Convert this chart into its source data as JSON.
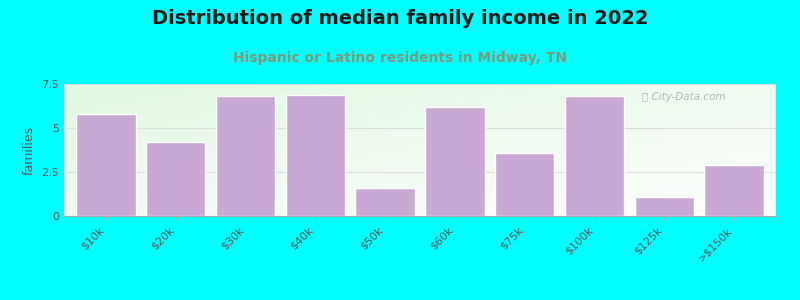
{
  "title": "Distribution of median family income in 2022",
  "subtitle": "Hispanic or Latino residents in Midway, TN",
  "categories": [
    "$10k",
    "$20k",
    "$30k",
    "$40k",
    "$50k",
    "$60k",
    "$75k",
    "$100k",
    "$125k",
    ">$150k"
  ],
  "values": [
    5.8,
    4.2,
    6.8,
    6.9,
    1.6,
    6.2,
    3.6,
    6.8,
    1.1,
    2.9
  ],
  "bar_color": "#c9a8d4",
  "bar_edge_color": "#ffffff",
  "background_color": "#00ffff",
  "title_color": "#1a1a1a",
  "subtitle_color": "#7a9a7a",
  "ylabel": "families",
  "ylim": [
    0,
    7.5
  ],
  "yticks": [
    0,
    2.5,
    5,
    7.5
  ],
  "title_fontsize": 14,
  "subtitle_fontsize": 10,
  "ylabel_fontsize": 9,
  "tick_fontsize": 8,
  "watermark_text": "ⓘ City-Data.com"
}
